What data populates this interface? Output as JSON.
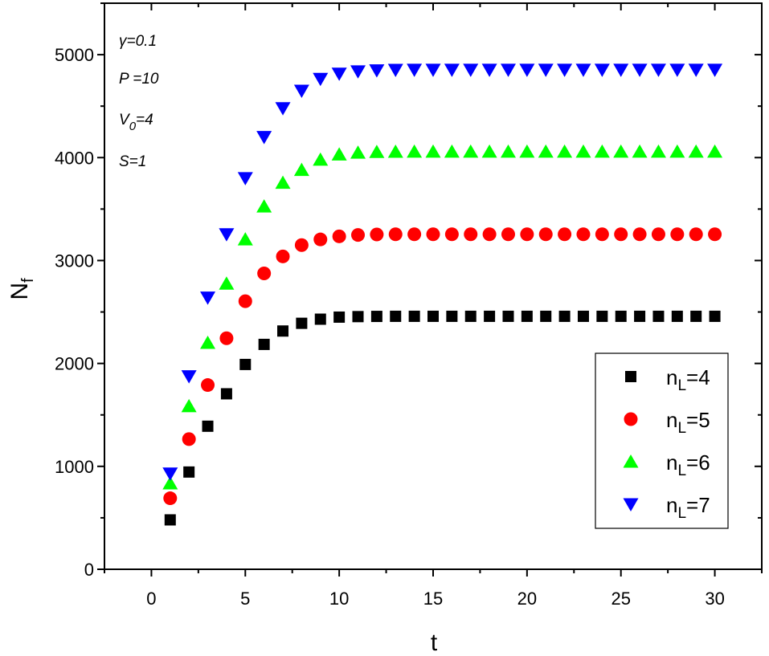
{
  "chart_data": {
    "type": "scatter",
    "title": "",
    "xlabel": "t",
    "ylabel": {
      "main": "N",
      "sub": "f"
    },
    "xlim": [
      -2.5,
      32.5
    ],
    "ylim": [
      0,
      5500
    ],
    "xticks": [
      0,
      5,
      10,
      15,
      20,
      25,
      30
    ],
    "yticks": [
      0,
      1000,
      2000,
      3000,
      4000,
      5000
    ],
    "xtick_labels": [
      "0",
      "5",
      "10",
      "15",
      "20",
      "25",
      "30"
    ],
    "ytick_labels": [
      "0",
      "1000",
      "2000",
      "3000",
      "4000",
      "5000"
    ],
    "grid": false,
    "legend_position": "bottom-right",
    "x": [
      1,
      2,
      3,
      4,
      5,
      6,
      7,
      8,
      9,
      10,
      11,
      12,
      13,
      14,
      15,
      16,
      17,
      18,
      19,
      20,
      21,
      22,
      23,
      24,
      25,
      26,
      27,
      28,
      29,
      30
    ],
    "series": [
      {
        "name": "4",
        "marker": "square",
        "color": "#000000",
        "values": [
          480,
          945,
          1390,
          1705,
          1990,
          2185,
          2315,
          2390,
          2430,
          2450,
          2455,
          2457,
          2458,
          2458,
          2458,
          2458,
          2458,
          2458,
          2458,
          2458,
          2458,
          2458,
          2458,
          2458,
          2458,
          2458,
          2458,
          2458,
          2458,
          2458
        ]
      },
      {
        "name": "5",
        "marker": "circle",
        "color": "#ff0000",
        "values": [
          690,
          1265,
          1790,
          2245,
          2605,
          2875,
          3040,
          3150,
          3205,
          3235,
          3248,
          3253,
          3255,
          3255,
          3255,
          3255,
          3255,
          3255,
          3255,
          3255,
          3255,
          3255,
          3255,
          3255,
          3255,
          3255,
          3255,
          3255,
          3255,
          3255
        ]
      },
      {
        "name": "6",
        "marker": "triangle-up",
        "color": "#00ff00",
        "values": [
          835,
          1585,
          2200,
          2775,
          3205,
          3525,
          3755,
          3880,
          3980,
          4030,
          4048,
          4055,
          4057,
          4058,
          4058,
          4058,
          4058,
          4058,
          4058,
          4058,
          4058,
          4058,
          4058,
          4058,
          4058,
          4058,
          4058,
          4058,
          4058,
          4058
        ]
      },
      {
        "name": "7",
        "marker": "triangle-down",
        "color": "#0000ff",
        "values": [
          930,
          1875,
          2640,
          3255,
          3800,
          4200,
          4480,
          4650,
          4765,
          4815,
          4838,
          4848,
          4852,
          4853,
          4853,
          4853,
          4853,
          4853,
          4853,
          4853,
          4853,
          4853,
          4853,
          4853,
          4853,
          4853,
          4853,
          4853,
          4853,
          4853
        ]
      }
    ],
    "legend_prefix": {
      "main": "n",
      "sub": "L",
      "eq": "="
    },
    "annotations": [
      {
        "id": "gamma",
        "text": "γ=0.1"
      },
      {
        "id": "p",
        "text": "P =10"
      },
      {
        "id": "v0",
        "main": "V",
        "sub": "0",
        "rest": "=4"
      },
      {
        "id": "s",
        "text": "S=1"
      }
    ]
  }
}
